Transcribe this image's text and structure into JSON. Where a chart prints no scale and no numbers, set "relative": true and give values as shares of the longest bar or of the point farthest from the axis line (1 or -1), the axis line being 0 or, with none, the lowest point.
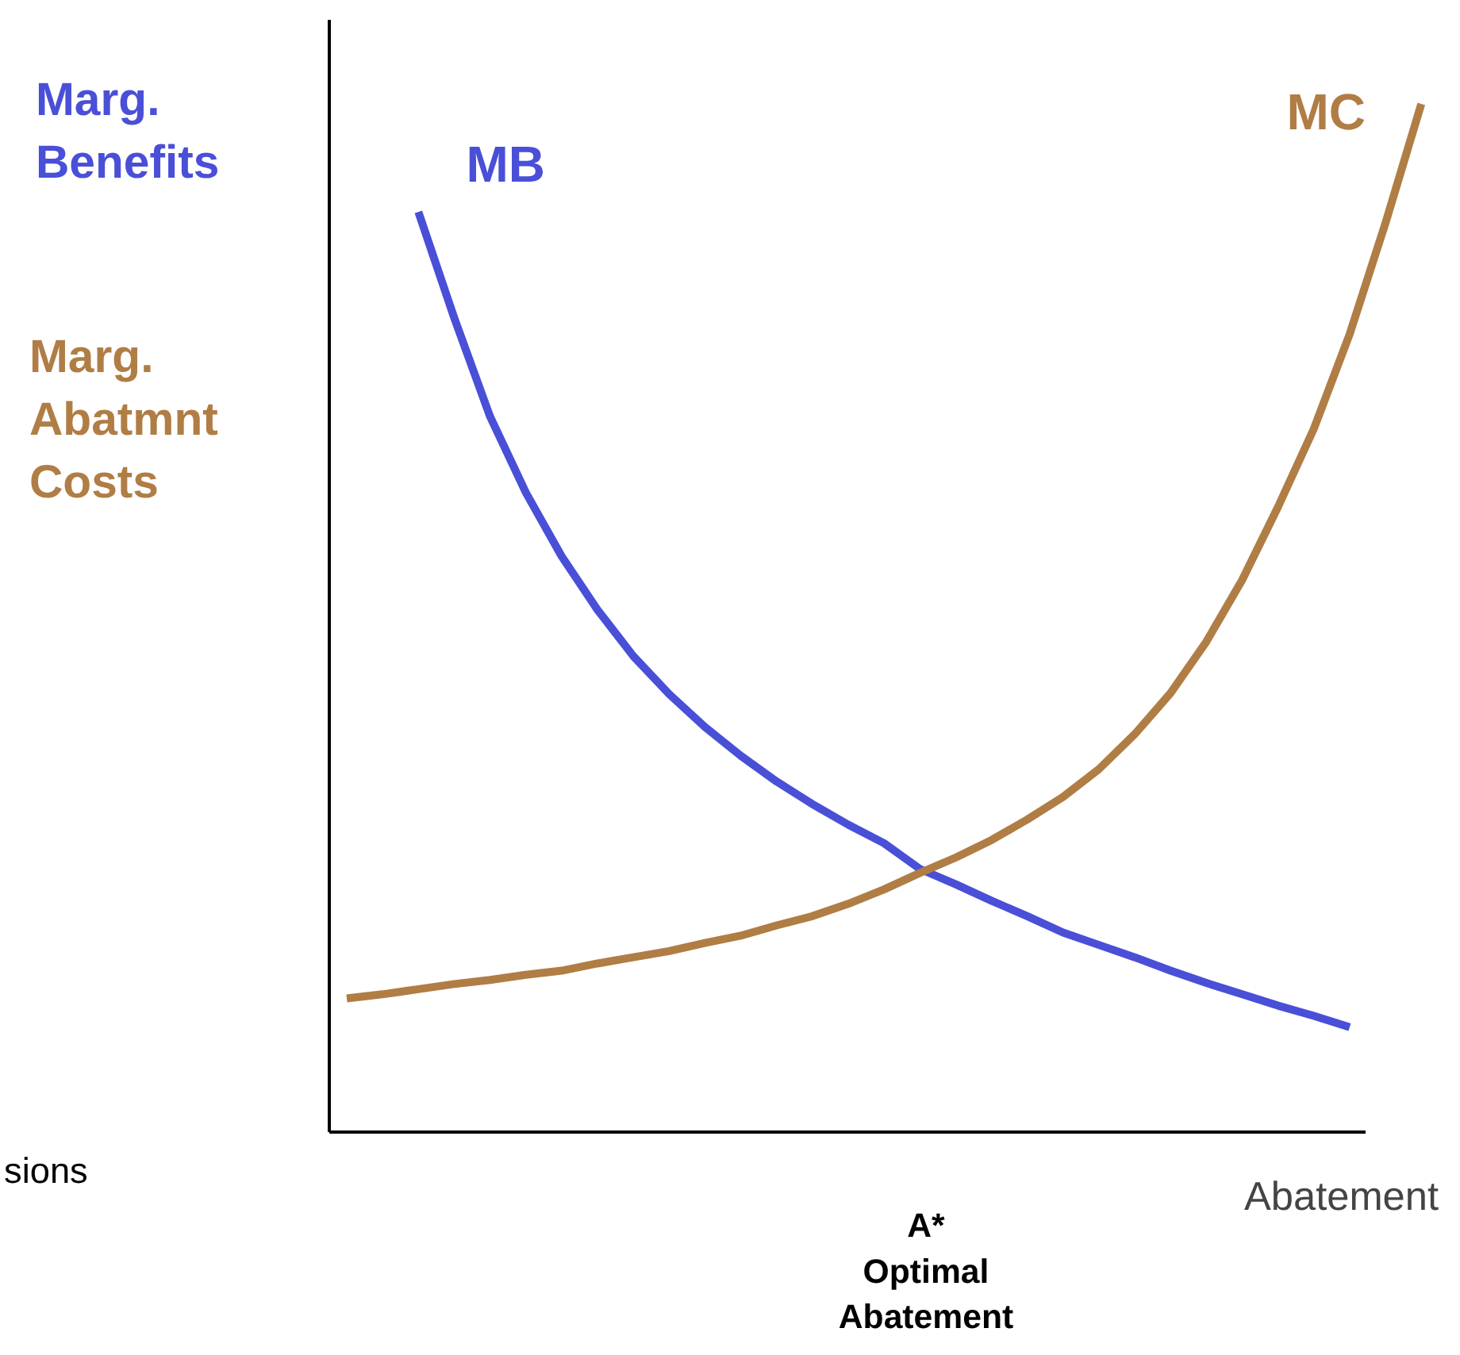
{
  "chart_data": {
    "type": "line",
    "relative": true,
    "xlabel": "Abatement",
    "categories": [
      null,
      null,
      null,
      null,
      null,
      null,
      null,
      null,
      null,
      null,
      null,
      null,
      null,
      null,
      null,
      null,
      null,
      null,
      null,
      null,
      null,
      null,
      null,
      null,
      null,
      null,
      null,
      null,
      null,
      null,
      null
    ],
    "series": [
      {
        "name": "MB",
        "color": "#4a4fd8",
        "values": [
          null,
          null,
          0.895,
          0.792,
          0.696,
          0.622,
          0.56,
          0.508,
          0.463,
          0.426,
          0.394,
          0.366,
          0.341,
          0.319,
          0.299,
          0.281,
          0.256,
          0.241,
          0.225,
          0.21,
          0.194,
          0.182,
          0.17,
          0.157,
          0.145,
          0.134,
          0.123,
          0.113,
          0.102,
          null,
          null
        ]
      },
      {
        "name": "MC",
        "color": "#b07d45",
        "values": [
          0.13,
          0.134,
          0.139,
          0.144,
          0.148,
          0.153,
          0.157,
          0.164,
          0.17,
          0.176,
          0.184,
          0.191,
          0.201,
          0.21,
          0.222,
          0.236,
          0.252,
          0.267,
          0.284,
          0.304,
          0.326,
          0.353,
          0.387,
          0.427,
          0.477,
          0.537,
          0.608,
          0.684,
          0.776,
          0.884,
          1
        ]
      }
    ],
    "annotations": [
      "Marg.\nBenefits",
      "Marg.\nAbatmnt\nCosts",
      "sions",
      "A*\nOptimal\nAbatement"
    ],
    "grid": false,
    "marker": "none",
    "line_style": "solid"
  }
}
